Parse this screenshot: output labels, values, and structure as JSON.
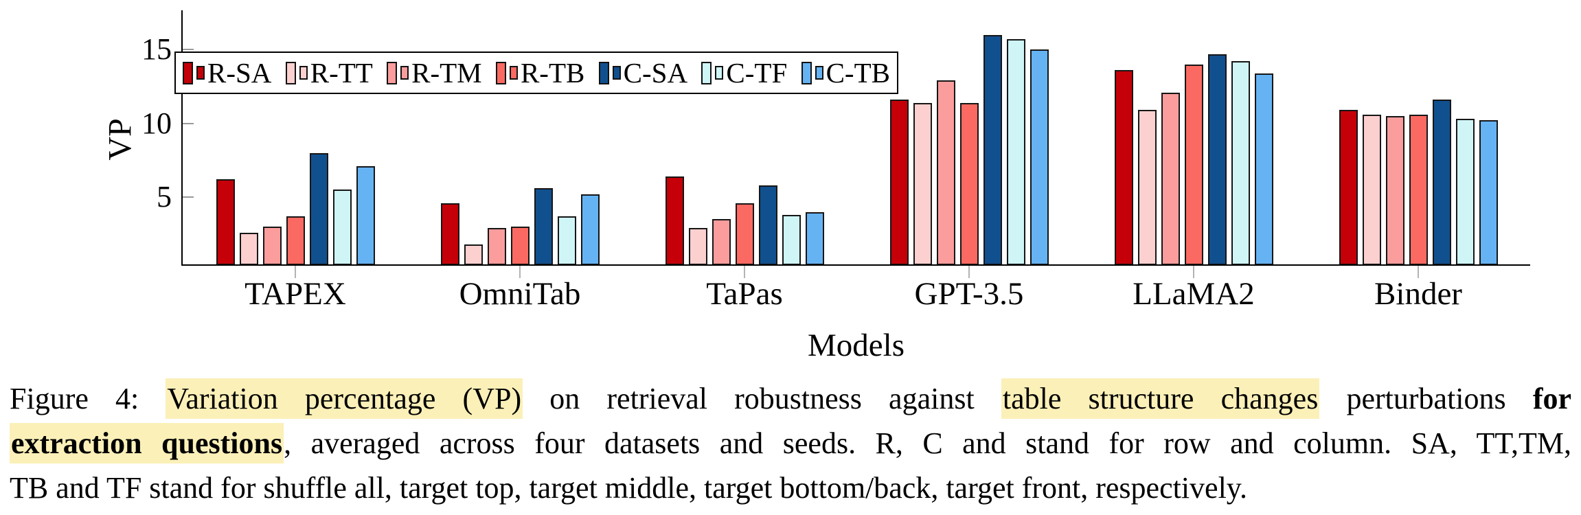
{
  "figure": {
    "ylabel": "VP",
    "xlabel": "Models"
  },
  "chart_data": {
    "type": "bar",
    "title": "",
    "xlabel": "Models",
    "ylabel": "VP",
    "categories": [
      "TAPEX",
      "OmniTab",
      "TaPas",
      "GPT-3.5",
      "LLaMA2",
      "Binder"
    ],
    "series": [
      {
        "name": "R-SA",
        "color": "#c50008",
        "values": [
          6.2,
          4.6,
          6.4,
          11.6,
          13.6,
          10.9
        ]
      },
      {
        "name": "R-TT",
        "color": "#fdd0d0",
        "values": [
          2.6,
          1.8,
          2.9,
          11.4,
          10.9,
          10.6
        ]
      },
      {
        "name": "R-TM",
        "color": "#fb9d9d",
        "values": [
          3.0,
          2.9,
          3.5,
          12.9,
          12.1,
          10.5
        ]
      },
      {
        "name": "R-TB",
        "color": "#fb6a62",
        "values": [
          3.7,
          3.0,
          4.6,
          11.4,
          14.0,
          10.6
        ]
      },
      {
        "name": "C-SA",
        "color": "#11508f",
        "values": [
          8.0,
          5.6,
          5.8,
          16.0,
          14.7,
          11.6
        ]
      },
      {
        "name": "C-TF",
        "color": "#cff5f7",
        "values": [
          5.5,
          3.7,
          3.8,
          15.7,
          14.2,
          10.3
        ]
      },
      {
        "name": "C-TB",
        "color": "#66b3f4",
        "values": [
          7.1,
          5.2,
          4.0,
          15.0,
          13.4,
          10.2
        ]
      }
    ],
    "yticks": [
      5,
      10,
      15
    ],
    "ylim": [
      0.45,
      17.75
    ],
    "grid": false,
    "legend_position": "top-left-inside"
  },
  "caption": {
    "highlight_color": "#fbf0b8",
    "lines": [
      [
        {
          "t": "Figure 4:  "
        },
        {
          "t": "Variation percentage (VP)",
          "h": true
        },
        {
          "t": " on retrieval robustness against "
        },
        {
          "t": "table structure changes",
          "h": true
        },
        {
          "t": " perturbations "
        },
        {
          "t": "for",
          "b": true
        }
      ],
      [
        {
          "t": "extraction questions",
          "b": true,
          "h": true
        },
        {
          "t": ", averaged across four datasets and seeds. R, C and stand for row and column. SA, TT,TM,"
        }
      ],
      [
        {
          "t": "TB and TF stand for shuffle all, target top, target middle, target bottom/back, target front, respectively."
        }
      ]
    ]
  }
}
